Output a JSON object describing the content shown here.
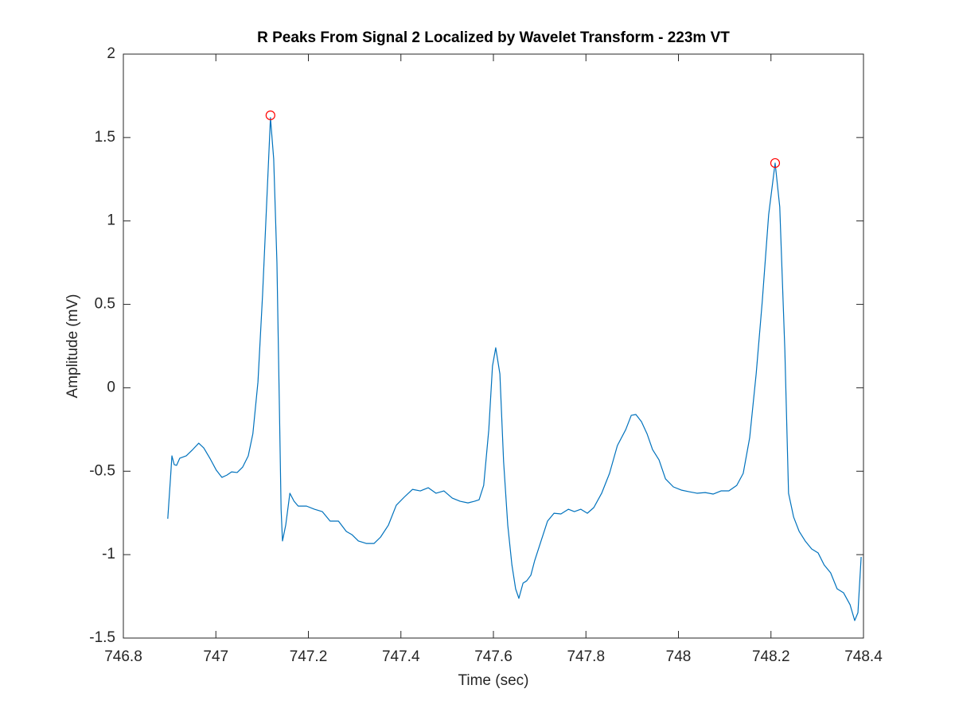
{
  "chart_data": {
    "type": "line",
    "title": "R Peaks From Signal 2 Localized by Wavelet Transform - 223m VT",
    "xlabel": "Time (sec)",
    "ylabel": "Amplitude (mV)",
    "xlim": [
      746.8,
      748.4
    ],
    "xticks": [
      746.8,
      747,
      747.2,
      747.4,
      747.6,
      747.8,
      748,
      748.2,
      748.4
    ],
    "ylim": [
      -1.5,
      2
    ],
    "yticks": [
      -1.5,
      -1,
      -0.5,
      0,
      0.5,
      1,
      1.5,
      2
    ],
    "grid": false,
    "series": [
      {
        "color": "#0072bd",
        "linestyle": "solid",
        "marker": "none",
        "x": [
          746.896,
          746.902,
          746.905,
          746.91,
          746.915,
          746.922,
          746.936,
          746.95,
          746.963,
          746.974,
          746.988,
          747.001,
          747.013,
          747.024,
          747.034,
          747.046,
          747.058,
          747.07,
          747.08,
          747.091,
          747.101,
          747.111,
          747.118,
          747.125,
          747.132,
          747.137,
          747.141,
          747.144,
          747.151,
          747.16,
          747.169,
          747.178,
          747.196,
          747.213,
          747.23,
          747.247,
          747.265,
          747.282,
          747.294,
          747.308,
          747.325,
          747.342,
          747.356,
          747.373,
          747.39,
          747.407,
          747.425,
          747.442,
          747.459,
          747.476,
          747.493,
          747.511,
          747.528,
          747.545,
          747.559,
          747.569,
          747.579,
          747.59,
          747.598,
          747.605,
          747.614,
          747.622,
          747.631,
          747.64,
          747.648,
          747.655,
          747.664,
          747.672,
          747.681,
          747.689,
          747.703,
          747.717,
          747.731,
          747.746,
          747.762,
          747.775,
          747.789,
          747.803,
          747.817,
          747.834,
          747.851,
          747.868,
          747.886,
          747.898,
          747.908,
          747.92,
          747.932,
          747.944,
          747.958,
          747.972,
          747.989,
          748.006,
          748.023,
          748.04,
          748.058,
          748.075,
          748.092,
          748.109,
          748.126,
          748.14,
          748.154,
          748.168,
          748.181,
          748.195,
          748.209,
          748.219,
          748.23,
          748.238,
          748.249,
          748.261,
          748.274,
          748.288,
          748.302,
          748.315,
          748.329,
          748.343,
          748.357,
          748.371,
          748.381,
          748.388,
          748.395
        ],
        "values": [
          -0.785,
          -0.537,
          -0.408,
          -0.461,
          -0.465,
          -0.422,
          -0.408,
          -0.37,
          -0.332,
          -0.361,
          -0.427,
          -0.494,
          -0.537,
          -0.523,
          -0.504,
          -0.508,
          -0.475,
          -0.408,
          -0.275,
          0.035,
          0.56,
          1.18,
          1.619,
          1.371,
          0.751,
          -0.06,
          -0.728,
          -0.918,
          -0.823,
          -0.632,
          -0.68,
          -0.709,
          -0.709,
          -0.728,
          -0.742,
          -0.799,
          -0.799,
          -0.861,
          -0.88,
          -0.918,
          -0.933,
          -0.933,
          -0.895,
          -0.823,
          -0.704,
          -0.656,
          -0.609,
          -0.618,
          -0.599,
          -0.632,
          -0.618,
          -0.661,
          -0.68,
          -0.69,
          -0.68,
          -0.671,
          -0.585,
          -0.251,
          0.131,
          0.24,
          0.083,
          -0.442,
          -0.823,
          -1.062,
          -1.205,
          -1.262,
          -1.171,
          -1.157,
          -1.123,
          -1.038,
          -0.918,
          -0.799,
          -0.752,
          -0.756,
          -0.728,
          -0.742,
          -0.728,
          -0.752,
          -0.718,
          -0.632,
          -0.513,
          -0.346,
          -0.251,
          -0.165,
          -0.16,
          -0.203,
          -0.275,
          -0.37,
          -0.432,
          -0.546,
          -0.594,
          -0.613,
          -0.623,
          -0.632,
          -0.628,
          -0.637,
          -0.618,
          -0.618,
          -0.585,
          -0.513,
          -0.299,
          0.083,
          0.512,
          1.037,
          1.347,
          1.084,
          0.226,
          -0.632,
          -0.775,
          -0.861,
          -0.918,
          -0.966,
          -0.99,
          -1.062,
          -1.109,
          -1.205,
          -1.229,
          -1.3,
          -1.395,
          -1.348,
          -1.014
        ]
      },
      {
        "color": "#ff0000",
        "linestyle": "none",
        "marker": "circle",
        "x": [
          747.118,
          748.209
        ],
        "values": [
          1.633,
          1.347
        ]
      }
    ]
  }
}
